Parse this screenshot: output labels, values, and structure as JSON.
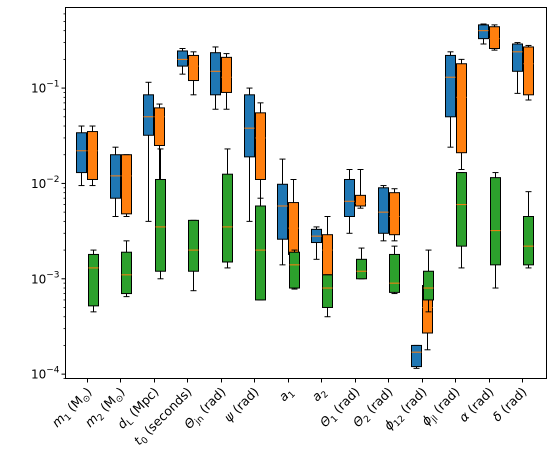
{
  "chart_data": {
    "type": "boxplot",
    "title": "",
    "xlabel": "",
    "ylabel": "",
    "yscale": "log",
    "ylim": [
      9e-05,
      0.7
    ],
    "y_ticks": [
      {
        "value": 0.0001,
        "base": "10",
        "exp": "−4"
      },
      {
        "value": 0.001,
        "base": "10",
        "exp": "−3"
      },
      {
        "value": 0.01,
        "base": "10",
        "exp": "−2"
      },
      {
        "value": 0.1,
        "base": "10",
        "exp": "−1"
      }
    ],
    "categories": [
      {
        "main": "m",
        "sub": "1",
        "rest": " (M",
        "sub2": "⊙",
        "tail": ")"
      },
      {
        "main": "m",
        "sub": "2",
        "rest": " (M",
        "sub2": "⊙",
        "tail": ")"
      },
      {
        "main": "d",
        "sub": "L",
        "rest": " (Mpc)",
        "sub2": "",
        "tail": ""
      },
      {
        "main": "t",
        "sub": "0",
        "rest": " (seconds)",
        "sub2": "",
        "tail": ""
      },
      {
        "main": "Θ",
        "sub": "jn",
        "rest": " (rad)",
        "sub2": "",
        "tail": ""
      },
      {
        "main": "ψ",
        "sub": "",
        "rest": " (rad)",
        "sub2": "",
        "tail": ""
      },
      {
        "main": "a",
        "sub": "1",
        "rest": "",
        "sub2": "",
        "tail": ""
      },
      {
        "main": "a",
        "sub": "2",
        "rest": "",
        "sub2": "",
        "tail": ""
      },
      {
        "main": "Θ",
        "sub": "1",
        "rest": " (rad)",
        "sub2": "",
        "tail": ""
      },
      {
        "main": "Θ",
        "sub": "2",
        "rest": " (rad)",
        "sub2": "",
        "tail": ""
      },
      {
        "main": "ϕ",
        "sub": "12",
        "rest": " (rad)",
        "sub2": "",
        "tail": ""
      },
      {
        "main": "ϕ",
        "sub": "jl",
        "rest": " (rad)",
        "sub2": "",
        "tail": ""
      },
      {
        "main": "α",
        "sub": "",
        "rest": " (rad)",
        "sub2": "",
        "tail": ""
      },
      {
        "main": "δ",
        "sub": "",
        "rest": " (rad)",
        "sub2": "",
        "tail": ""
      }
    ],
    "colors": {
      "blue": "#1f77b4",
      "orange": "#ff7f0e",
      "green": "#2ca02c",
      "median": "#ff7f0e"
    },
    "series": [
      {
        "color": "blue",
        "boxes": [
          {
            "cat": 0,
            "wlo": 0.0095,
            "q1": 0.013,
            "med": 0.022,
            "q3": 0.034,
            "whi": 0.04
          },
          {
            "cat": 1,
            "wlo": 0.0045,
            "q1": 0.007,
            "med": 0.012,
            "q3": 0.02,
            "whi": 0.024
          },
          {
            "cat": 2,
            "wlo": 0.004,
            "q1": 0.032,
            "med": 0.05,
            "q3": 0.085,
            "whi": 0.115
          },
          {
            "cat": 3,
            "wlo": 0.14,
            "q1": 0.17,
            "med": 0.2,
            "q3": 0.245,
            "whi": 0.26
          },
          {
            "cat": 4,
            "wlo": 0.06,
            "q1": 0.085,
            "med": 0.15,
            "q3": 0.235,
            "whi": 0.27
          },
          {
            "cat": 5,
            "wlo": 0.004,
            "q1": 0.019,
            "med": 0.038,
            "q3": 0.085,
            "whi": 0.1
          },
          {
            "cat": 6,
            "wlo": 0.0014,
            "q1": 0.0026,
            "med": 0.0058,
            "q3": 0.0098,
            "whi": 0.018
          },
          {
            "cat": 7,
            "wlo": 0.0016,
            "q1": 0.0024,
            "med": 0.0028,
            "q3": 0.0033,
            "whi": 0.0035
          },
          {
            "cat": 8,
            "wlo": 0.003,
            "q1": 0.0045,
            "med": 0.0065,
            "q3": 0.011,
            "whi": 0.014
          },
          {
            "cat": 9,
            "wlo": 0.0025,
            "q1": 0.003,
            "med": 0.005,
            "q3": 0.009,
            "whi": 0.0095
          },
          {
            "cat": 10,
            "wlo": 0.000115,
            "q1": 0.00012,
            "med": 0.00017,
            "q3": 0.0002,
            "whi": 0.0002
          },
          {
            "cat": 11,
            "wlo": 0.024,
            "q1": 0.05,
            "med": 0.13,
            "q3": 0.22,
            "whi": 0.24
          },
          {
            "cat": 12,
            "wlo": 0.29,
            "q1": 0.33,
            "med": 0.4,
            "q3": 0.46,
            "whi": 0.47
          },
          {
            "cat": 13,
            "wlo": 0.088,
            "q1": 0.15,
            "med": 0.24,
            "q3": 0.29,
            "whi": 0.3
          }
        ]
      },
      {
        "color": "orange",
        "boxes": [
          {
            "cat": 0,
            "wlo": 0.0095,
            "q1": 0.011,
            "med": 0.022,
            "q3": 0.035,
            "whi": 0.04
          },
          {
            "cat": 1,
            "wlo": 0.0045,
            "q1": 0.0048,
            "med": 0.012,
            "q3": 0.02,
            "whi": 0.02
          },
          {
            "cat": 2,
            "wlo": 0.0038,
            "q1": 0.025,
            "med": 0.05,
            "q3": 0.062,
            "whi": 0.068
          },
          {
            "cat": 3,
            "wlo": 0.085,
            "q1": 0.12,
            "med": 0.17,
            "q3": 0.22,
            "whi": 0.24
          },
          {
            "cat": 4,
            "wlo": 0.06,
            "q1": 0.09,
            "med": 0.13,
            "q3": 0.21,
            "whi": 0.23
          },
          {
            "cat": 5,
            "wlo": 0.0029,
            "q1": 0.011,
            "med": 0.03,
            "q3": 0.055,
            "whi": 0.07
          },
          {
            "cat": 6,
            "wlo": 0.0014,
            "q1": 0.0018,
            "med": 0.0034,
            "q3": 0.0063,
            "whi": 0.011
          },
          {
            "cat": 7,
            "wlo": 0.001,
            "q1": 0.0011,
            "med": 0.002,
            "q3": 0.0029,
            "whi": 0.0045
          },
          {
            "cat": 8,
            "wlo": 0.0055,
            "q1": 0.0058,
            "med": 0.0062,
            "q3": 0.0075,
            "whi": 0.014
          },
          {
            "cat": 9,
            "wlo": 0.0025,
            "q1": 0.0029,
            "med": 0.0045,
            "q3": 0.008,
            "whi": 0.0088
          },
          {
            "cat": 10,
            "wlo": 0.00018,
            "q1": 0.00027,
            "med": 0.0005,
            "q3": 0.00085,
            "whi": 0.0011
          },
          {
            "cat": 11,
            "wlo": 0.014,
            "q1": 0.021,
            "med": 0.08,
            "q3": 0.18,
            "whi": 0.2
          },
          {
            "cat": 12,
            "wlo": 0.25,
            "q1": 0.26,
            "med": 0.33,
            "q3": 0.44,
            "whi": 0.46
          },
          {
            "cat": 13,
            "wlo": 0.075,
            "q1": 0.085,
            "med": 0.18,
            "q3": 0.27,
            "whi": 0.28
          }
        ]
      },
      {
        "color": "green",
        "boxes": [
          {
            "cat": 0,
            "wlo": 0.00045,
            "q1": 0.00052,
            "med": 0.0013,
            "q3": 0.0018,
            "whi": 0.002
          },
          {
            "cat": 1,
            "wlo": 0.00065,
            "q1": 0.0007,
            "med": 0.0011,
            "q3": 0.0019,
            "whi": 0.0025
          },
          {
            "cat": 2,
            "wlo": 0.001,
            "q1": 0.0012,
            "med": 0.0035,
            "q3": 0.011,
            "whi": 0.023
          },
          {
            "cat": 3,
            "wlo": 0.00075,
            "q1": 0.0012,
            "med": 0.002,
            "q3": 0.0041,
            "whi": 0.0041
          },
          {
            "cat": 4,
            "wlo": 0.0013,
            "q1": 0.0015,
            "med": 0.0035,
            "q3": 0.0125,
            "whi": 0.023
          },
          {
            "cat": 5,
            "wlo": 0.0006,
            "q1": 0.0006,
            "med": 0.002,
            "q3": 0.0058,
            "whi": 0.007
          },
          {
            "cat": 6,
            "wlo": 0.00078,
            "q1": 0.0008,
            "med": 0.0014,
            "q3": 0.0019,
            "whi": 0.002
          },
          {
            "cat": 7,
            "wlo": 0.0004,
            "q1": 0.0005,
            "med": 0.0008,
            "q3": 0.0011,
            "whi": 0.0011
          },
          {
            "cat": 8,
            "wlo": 0.001,
            "q1": 0.001,
            "med": 0.0012,
            "q3": 0.0016,
            "whi": 0.0021
          },
          {
            "cat": 9,
            "wlo": 0.0007,
            "q1": 0.00072,
            "med": 0.0009,
            "q3": 0.0018,
            "whi": 0.0022
          },
          {
            "cat": 10,
            "wlo": 0.00045,
            "q1": 0.0006,
            "med": 0.0008,
            "q3": 0.0012,
            "whi": 0.002
          },
          {
            "cat": 11,
            "wlo": 0.0013,
            "q1": 0.0022,
            "med": 0.006,
            "q3": 0.013,
            "whi": 0.013
          },
          {
            "cat": 12,
            "wlo": 0.0008,
            "q1": 0.0014,
            "med": 0.0032,
            "q3": 0.0115,
            "whi": 0.013
          },
          {
            "cat": 13,
            "wlo": 0.0013,
            "q1": 0.0014,
            "med": 0.0022,
            "q3": 0.0045,
            "whi": 0.0082
          }
        ]
      }
    ]
  }
}
